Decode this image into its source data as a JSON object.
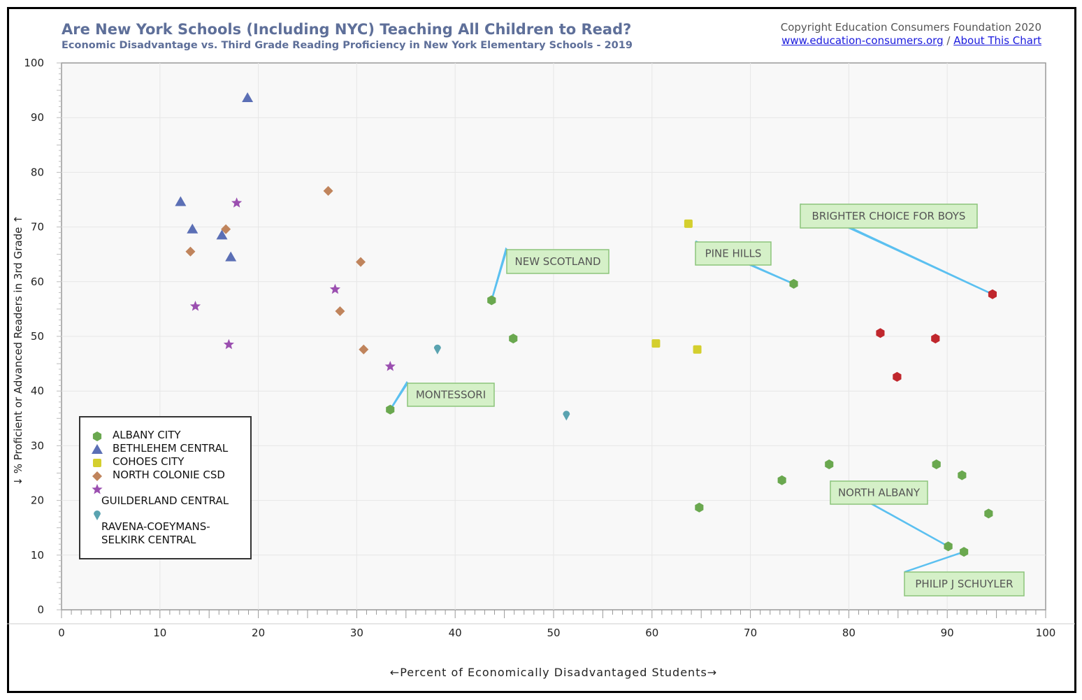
{
  "header": {
    "title": "Are New York Schools (Including NYC) Teaching All Children to Read?",
    "subtitle": "Economic Disadvantage vs. Third Grade Reading Proficiency in New York Elementary Schools - 2019",
    "copyright": "Copyright Education Consumers Foundation 2020",
    "link1": "www.education-consumers.org",
    "separator": "/",
    "link2": "About This Chart"
  },
  "chart_data": {
    "type": "scatter",
    "xlabel": "←Percent of Economically Disadvantaged Students→",
    "ylabel": "↓  % Proficient or Advanced Readers in 3rd Grade  ↑",
    "xlim": [
      0,
      100
    ],
    "ylim": [
      0,
      100
    ],
    "xticks": [
      0,
      10,
      20,
      30,
      40,
      50,
      60,
      70,
      80,
      90,
      100
    ],
    "yticks": [
      0,
      10,
      20,
      30,
      40,
      50,
      60,
      70,
      80,
      90,
      100
    ],
    "grid": true,
    "legend_placement": "bottom-left",
    "series": [
      {
        "name": "ALBANY CITY",
        "marker": "hexagon",
        "color": "#6aa84f",
        "points": [
          [
            43.7,
            56.6
          ],
          [
            45.9,
            49.6
          ],
          [
            33.4,
            36.6
          ],
          [
            74.4,
            59.6
          ],
          [
            64.8,
            18.7
          ],
          [
            73.2,
            23.7
          ],
          [
            78.0,
            26.6
          ],
          [
            88.9,
            26.6
          ],
          [
            91.5,
            24.6
          ],
          [
            94.2,
            17.6
          ],
          [
            90.1,
            11.6
          ],
          [
            91.7,
            10.6
          ]
        ]
      },
      {
        "name": "BETHLEHEM CENTRAL",
        "marker": "triangle",
        "color": "#5b6fb5",
        "points": [
          [
            18.9,
            93.6
          ],
          [
            12.1,
            74.6
          ],
          [
            13.3,
            69.6
          ],
          [
            16.3,
            68.5
          ],
          [
            17.2,
            64.5
          ]
        ]
      },
      {
        "name": "COHOES CITY",
        "marker": "square",
        "color": "#d4cf2e",
        "points": [
          [
            63.7,
            70.6
          ],
          [
            60.4,
            48.7
          ],
          [
            64.6,
            47.6
          ]
        ]
      },
      {
        "name": "NORTH COLONIE CSD",
        "marker": "diamond",
        "color": "#c0845c",
        "points": [
          [
            27.1,
            76.6
          ],
          [
            16.7,
            69.6
          ],
          [
            13.1,
            65.5
          ],
          [
            30.4,
            63.6
          ],
          [
            28.3,
            54.6
          ],
          [
            30.7,
            47.6
          ]
        ]
      },
      {
        "name": "GUILDERLAND CENTRAL",
        "marker": "star",
        "color": "#9b4fb0",
        "points": [
          [
            17.8,
            74.4
          ],
          [
            27.8,
            58.6
          ],
          [
            13.6,
            55.5
          ],
          [
            17.0,
            48.5
          ],
          [
            33.4,
            44.5
          ]
        ]
      },
      {
        "name": "RAVENA-COEYMANS-SELKIRK CENTRAL",
        "marker": "drop",
        "color": "#5aa3b0",
        "points": [
          [
            38.2,
            47.6
          ],
          [
            51.3,
            35.5
          ]
        ]
      },
      {
        "marker": "hexagon",
        "color": "#c0272d",
        "points": [
          [
            94.6,
            57.7
          ],
          [
            83.2,
            50.6
          ],
          [
            88.8,
            49.6
          ],
          [
            84.9,
            42.6
          ]
        ]
      }
    ],
    "annotations": [
      {
        "text": "NEW SCOTLAND",
        "point": [
          43.7,
          56.6
        ]
      },
      {
        "text": "MONTESSORI",
        "point": [
          33.4,
          36.6
        ]
      },
      {
        "text": "PINE HILLS",
        "point": [
          74.4,
          59.6
        ]
      },
      {
        "text": "BRIGHTER CHOICE FOR BOYS",
        "point": [
          94.6,
          57.7
        ]
      },
      {
        "text": "NORTH ALBANY",
        "point": [
          90.1,
          11.6
        ]
      },
      {
        "text": "PHILIP J SCHUYLER",
        "point": [
          91.7,
          10.6
        ]
      }
    ]
  }
}
